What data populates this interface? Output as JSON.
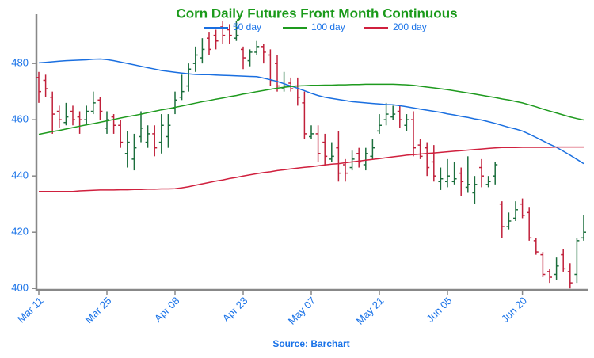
{
  "chart_data": {
    "type": "ohlc",
    "title": "Corn Daily Futures Front Month Continuous",
    "source": "Source: Barchart",
    "title_color": "#1a9a1a",
    "text_color": "#1a73e8",
    "up_color": "#1b6e3c",
    "down_color": "#c0203a",
    "categories": [
      "Mar 11",
      null,
      null,
      null,
      null,
      null,
      null,
      null,
      null,
      null,
      "Mar 25",
      null,
      null,
      null,
      null,
      null,
      null,
      null,
      null,
      null,
      "Apr 08",
      null,
      null,
      null,
      null,
      null,
      null,
      null,
      null,
      null,
      "Apr 23",
      null,
      null,
      null,
      null,
      null,
      null,
      null,
      null,
      null,
      "May 07",
      null,
      null,
      null,
      null,
      null,
      null,
      null,
      null,
      null,
      "May 21",
      null,
      null,
      null,
      null,
      null,
      null,
      null,
      null,
      null,
      "Jun 05",
      null,
      null,
      null,
      null,
      null,
      null,
      null,
      null,
      null,
      null,
      "Jun 20",
      null,
      null,
      null,
      null,
      null,
      null,
      null,
      null,
      null
    ],
    "open": [
      475,
      474,
      468,
      463,
      459,
      463,
      461,
      460,
      463,
      467,
      457,
      461,
      458,
      448,
      446,
      454,
      452,
      455,
      452,
      454,
      464,
      468,
      472,
      480,
      482,
      489,
      490,
      493,
      492,
      489,
      485,
      481,
      484,
      486,
      483,
      480,
      471,
      473,
      472,
      466,
      454,
      455,
      452,
      446,
      450,
      444,
      443,
      448,
      444,
      447,
      456,
      460,
      461,
      463,
      458,
      460,
      451,
      450,
      445,
      438,
      438,
      438,
      441,
      436,
      434,
      443,
      437,
      440,
      430,
      422,
      425,
      430,
      427,
      417,
      412,
      406,
      405,
      412,
      406,
      405,
      418
    ],
    "high": [
      477,
      476,
      470,
      465,
      466,
      465,
      463,
      465,
      470,
      468,
      463,
      462,
      460,
      456,
      455,
      463,
      458,
      458,
      462,
      462,
      470,
      476,
      480,
      486,
      489,
      491,
      492,
      495,
      494,
      495,
      486,
      485,
      488,
      487,
      485,
      483,
      477,
      475,
      475,
      470,
      458,
      458,
      455,
      452,
      456,
      446,
      449,
      450,
      450,
      453,
      462,
      466,
      465,
      465,
      462,
      463,
      453,
      452,
      451,
      443,
      446,
      445,
      443,
      447,
      440,
      446,
      440,
      445,
      431,
      427,
      431,
      432,
      429,
      418,
      413,
      407,
      411,
      414,
      409,
      418,
      426
    ],
    "low": [
      466,
      468,
      455,
      457,
      458,
      458,
      455,
      458,
      462,
      460,
      455,
      455,
      450,
      443,
      442,
      452,
      450,
      447,
      448,
      450,
      462,
      467,
      470,
      477,
      480,
      483,
      485,
      487,
      487,
      488,
      478,
      479,
      483,
      480,
      472,
      470,
      470,
      470,
      465,
      453,
      453,
      445,
      444,
      445,
      438,
      438,
      442,
      443,
      442,
      446,
      455,
      458,
      460,
      457,
      456,
      447,
      446,
      440,
      438,
      435,
      436,
      437,
      433,
      434,
      430,
      436,
      436,
      437,
      418,
      421,
      424,
      425,
      417,
      412,
      404,
      402,
      403,
      406,
      400,
      402,
      417
    ],
    "close": [
      470,
      471,
      462,
      460,
      461,
      460,
      460,
      463,
      466,
      463,
      460,
      458,
      452,
      452,
      450,
      457,
      455,
      450,
      458,
      458,
      467,
      470,
      478,
      483,
      485,
      485,
      488,
      490,
      490,
      490,
      482,
      484,
      486,
      484,
      474,
      472,
      472,
      471,
      468,
      455,
      455,
      448,
      447,
      447,
      441,
      441,
      446,
      445,
      448,
      450,
      458,
      462,
      462,
      460,
      460,
      450,
      447,
      443,
      440,
      439,
      440,
      439,
      438,
      437,
      437,
      440,
      438,
      444,
      422,
      424,
      428,
      426,
      418,
      413,
      405,
      404,
      408,
      407,
      402,
      417,
      420
    ],
    "moving_averages": [
      {
        "name": "50 day",
        "color": "#1a6fe0",
        "values": [
          480.2,
          480.4,
          480.6,
          480.8,
          481.0,
          481.1,
          481.2,
          481.3,
          481.5,
          481.6,
          481.4,
          481.0,
          480.5,
          480.0,
          479.5,
          479.0,
          478.5,
          478.0,
          477.5,
          477.2,
          476.9,
          476.6,
          476.3,
          476.1,
          476.0,
          476.0,
          475.9,
          475.8,
          475.7,
          475.6,
          475.5,
          475.4,
          475.3,
          474.8,
          474.2,
          473.6,
          472.8,
          472.0,
          471.2,
          470.3,
          469.4,
          468.6,
          468.0,
          467.6,
          467.2,
          466.8,
          466.4,
          466.2,
          466.0,
          465.8,
          465.6,
          465.4,
          465.3,
          465.0,
          464.6,
          464.2,
          463.8,
          463.4,
          463.0,
          462.6,
          462.1,
          461.7,
          461.2,
          460.8,
          460.3,
          459.9,
          459.3,
          458.7,
          458.0,
          457.3,
          456.7,
          456.0,
          454.9,
          453.7,
          452.5,
          451.3,
          450.2,
          448.8,
          447.4,
          445.9,
          444.4
        ]
      },
      {
        "name": "100 day",
        "color": "#1e9a1e",
        "values": [
          454.8,
          455.3,
          455.8,
          456.2,
          456.7,
          457.2,
          457.7,
          458.2,
          458.6,
          459.1,
          459.6,
          460.1,
          460.6,
          461.1,
          461.5,
          462.0,
          462.5,
          463.0,
          463.5,
          463.9,
          464.4,
          464.9,
          465.4,
          465.9,
          466.4,
          466.8,
          467.3,
          467.7,
          468.2,
          468.6,
          469.1,
          469.5,
          470.0,
          470.4,
          470.8,
          471.2,
          471.5,
          471.8,
          472.0,
          472.1,
          472.2,
          472.2,
          472.3,
          472.3,
          472.4,
          472.4,
          472.5,
          472.5,
          472.6,
          472.6,
          472.6,
          472.6,
          472.6,
          472.5,
          472.4,
          472.2,
          471.9,
          471.6,
          471.3,
          471.0,
          470.7,
          470.3,
          469.9,
          469.5,
          469.1,
          468.7,
          468.3,
          467.9,
          467.4,
          467.0,
          466.5,
          466.0,
          465.3,
          464.6,
          463.8,
          463.1,
          462.4,
          461.7,
          461.0,
          460.4,
          459.9
        ]
      },
      {
        "name": "200 day",
        "color": "#d0203e",
        "values": [
          434.5,
          434.5,
          434.5,
          434.5,
          434.5,
          434.5,
          434.7,
          434.8,
          434.9,
          435.0,
          435.0,
          435.0,
          435.1,
          435.1,
          435.2,
          435.2,
          435.3,
          435.3,
          435.4,
          435.4,
          435.5,
          435.8,
          436.2,
          436.7,
          437.2,
          437.7,
          438.2,
          438.6,
          439.1,
          439.5,
          440.0,
          440.4,
          440.8,
          441.2,
          441.5,
          441.9,
          442.2,
          442.5,
          442.8,
          443.1,
          443.3,
          443.6,
          443.9,
          444.2,
          444.4,
          444.7,
          445.0,
          445.3,
          445.6,
          445.9,
          446.2,
          446.5,
          446.8,
          447.1,
          447.4,
          447.6,
          447.8,
          448.0,
          448.2,
          448.4,
          448.6,
          448.8,
          449.0,
          449.2,
          449.4,
          449.6,
          449.8,
          450.0,
          450.1,
          450.1,
          450.1,
          450.2,
          450.2,
          450.2,
          450.2,
          450.2,
          450.3,
          450.3,
          450.3,
          450.3,
          450.3
        ]
      }
    ],
    "ylim": [
      399.5,
      497.5
    ],
    "yticks": [
      400,
      420,
      440,
      460,
      480
    ],
    "grid": false
  }
}
